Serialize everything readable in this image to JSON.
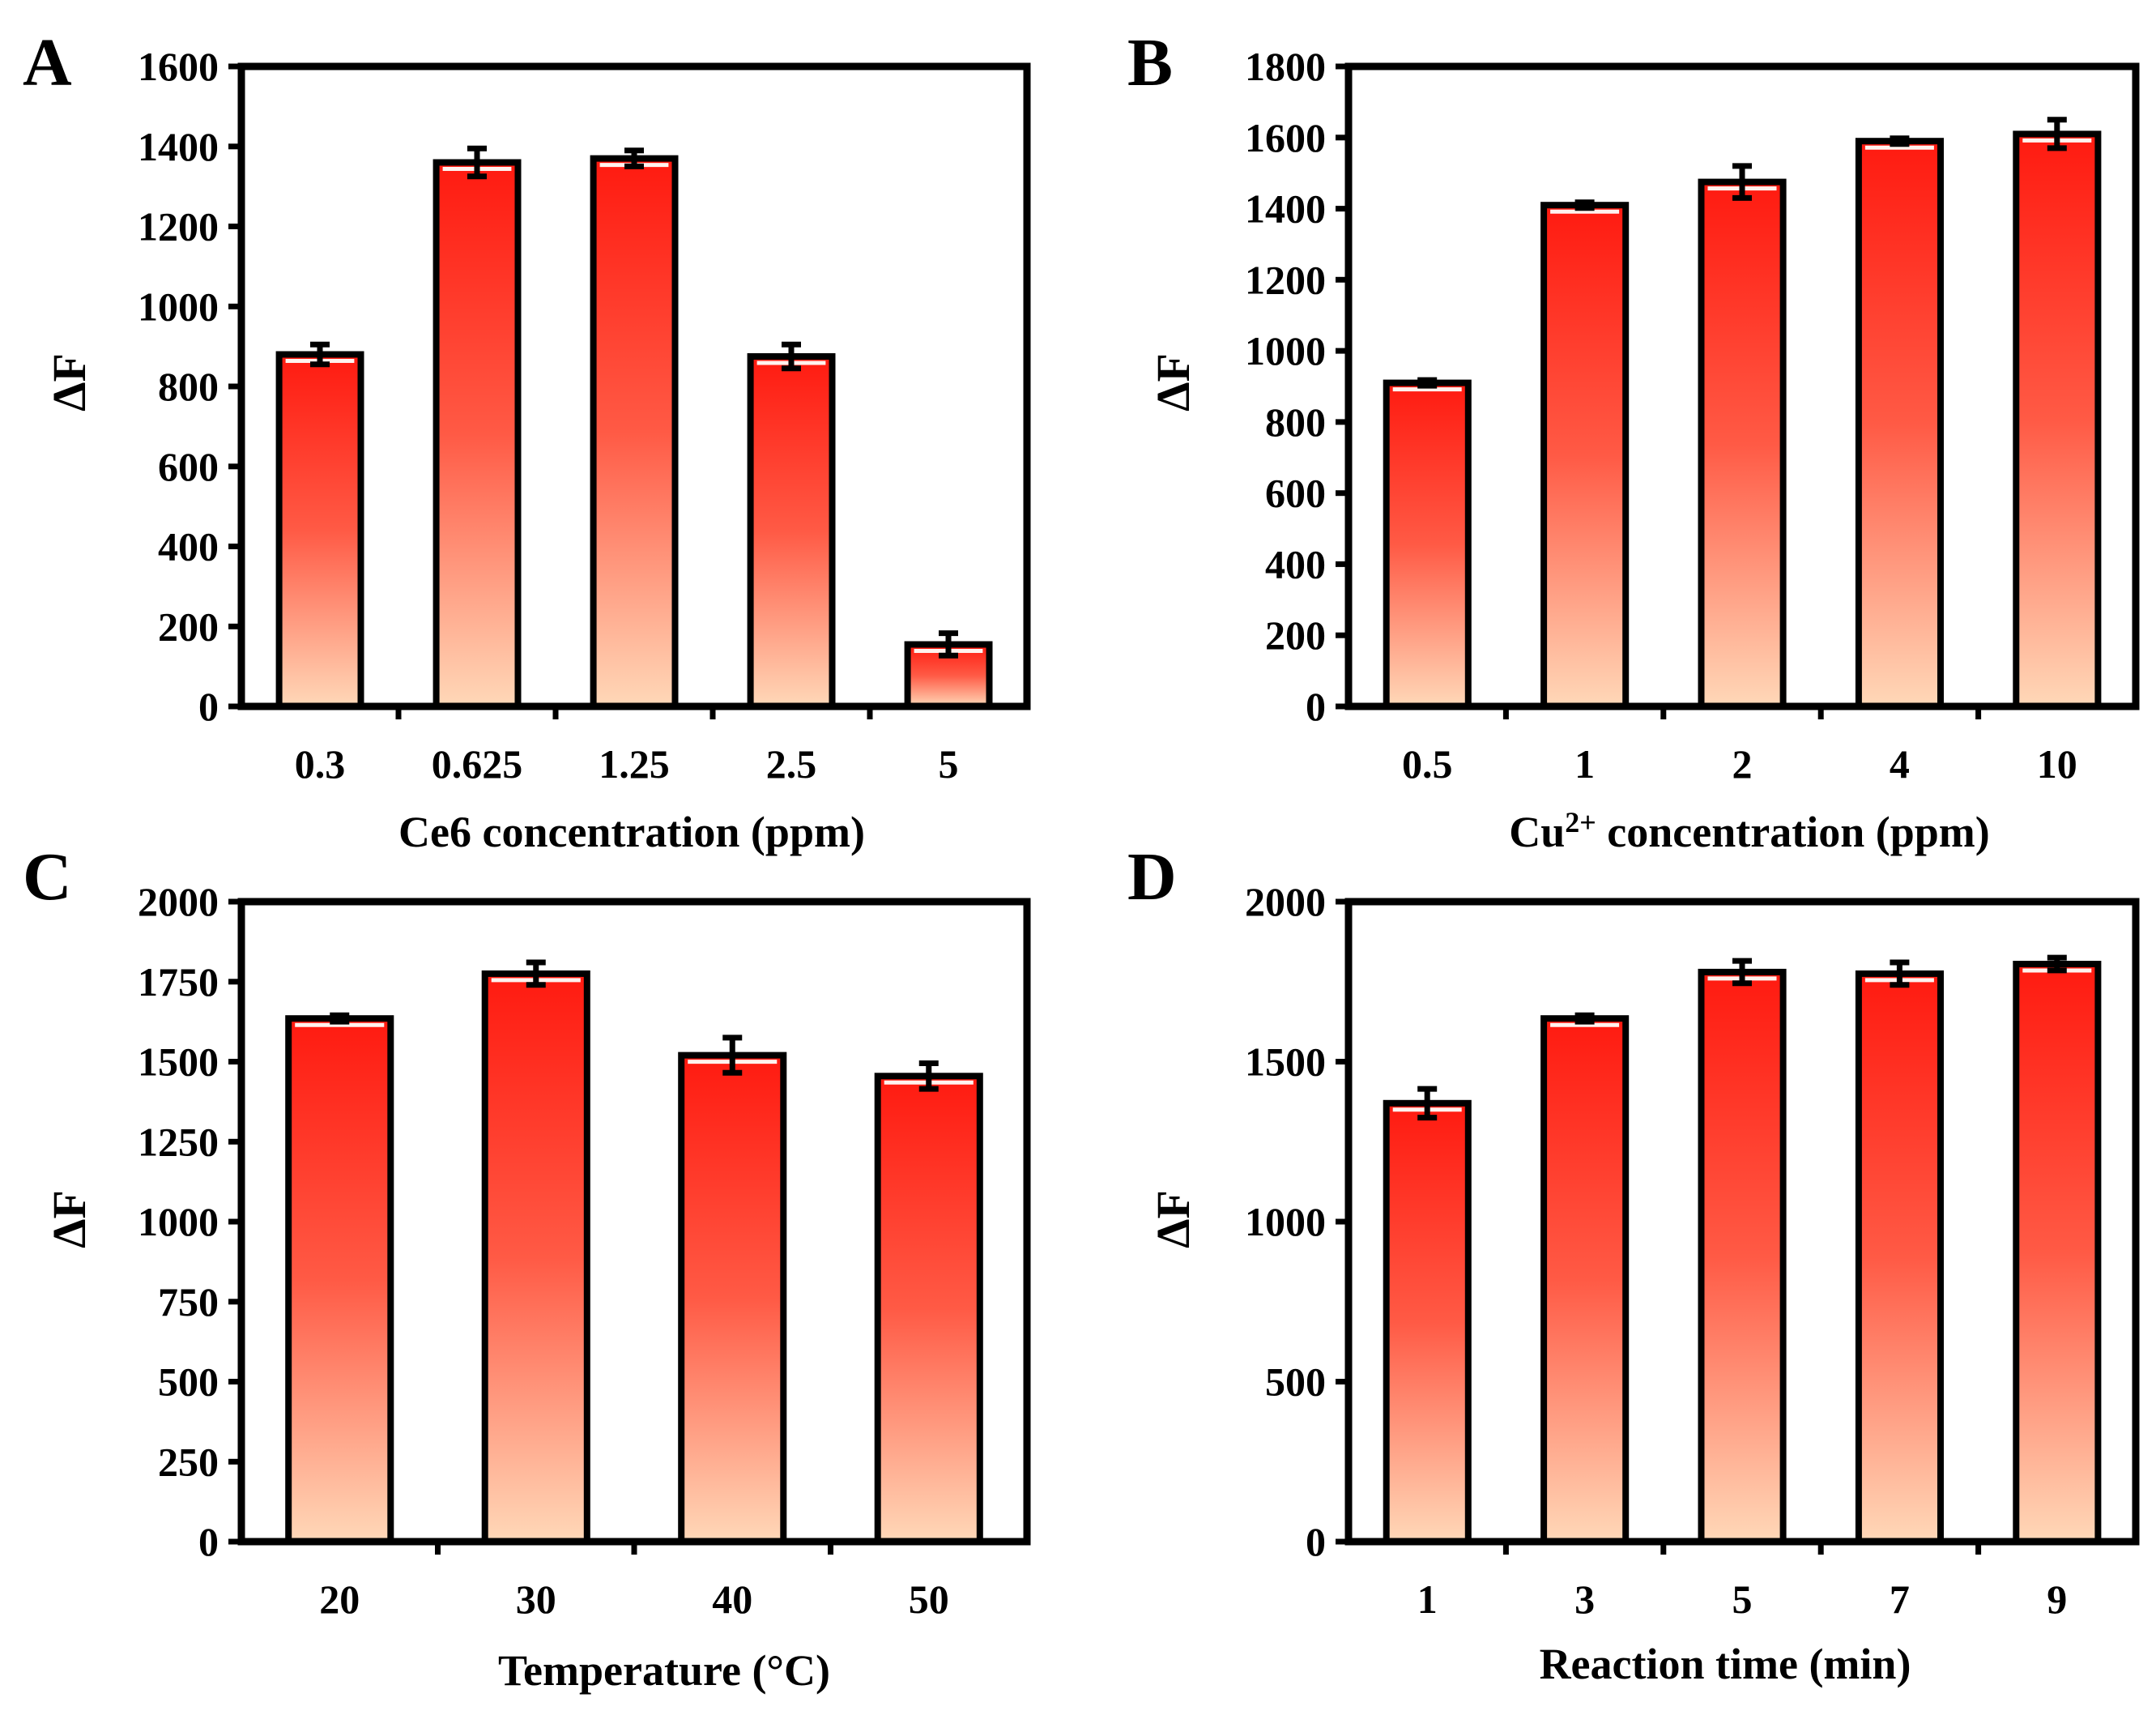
{
  "chart_data": [
    {
      "type": "bar",
      "panel": "A",
      "categories": [
        "0.3",
        "0.625",
        "1.25",
        "2.5",
        "5"
      ],
      "values": [
        880,
        1360,
        1370,
        875,
        155
      ],
      "errors": [
        25,
        35,
        20,
        30,
        28
      ],
      "xlabel": "Ce6 concentration (ppm)",
      "xlabel_sup": "",
      "xlabel_rest": "",
      "ylabel": "ΔF",
      "ylim": [
        0,
        1600
      ],
      "yticks": [
        0,
        200,
        400,
        600,
        800,
        1000,
        1200,
        1400,
        1600
      ],
      "grid": false,
      "legend": "none"
    },
    {
      "type": "bar",
      "panel": "B",
      "categories": [
        "0.5",
        "1",
        "2",
        "4",
        "10"
      ],
      "values": [
        910,
        1410,
        1475,
        1590,
        1610
      ],
      "errors": [
        8,
        8,
        45,
        8,
        40
      ],
      "xlabel": "Cu",
      "xlabel_sup": "2+",
      "xlabel_rest": " concentration (ppm)",
      "ylabel": "ΔF",
      "ylim": [
        0,
        1800
      ],
      "yticks": [
        0,
        200,
        400,
        600,
        800,
        1000,
        1200,
        1400,
        1600,
        1800
      ],
      "grid": false,
      "legend": "none"
    },
    {
      "type": "bar",
      "panel": "C",
      "categories": [
        "20",
        "30",
        "40",
        "50"
      ],
      "values": [
        1635,
        1775,
        1520,
        1455
      ],
      "errors": [
        10,
        35,
        55,
        40
      ],
      "xlabel": "Temperature (°C)",
      "xlabel_sup": "",
      "xlabel_rest": "",
      "ylabel": "ΔF",
      "ylim": [
        0,
        2000
      ],
      "yticks": [
        0,
        250,
        500,
        750,
        1000,
        1250,
        1500,
        1750,
        2000
      ],
      "grid": false,
      "legend": "none"
    },
    {
      "type": "bar",
      "panel": "D",
      "categories": [
        "1",
        "3",
        "5",
        "7",
        "9"
      ],
      "values": [
        1370,
        1635,
        1780,
        1775,
        1805
      ],
      "errors": [
        45,
        10,
        35,
        35,
        20
      ],
      "xlabel": "Reaction time (min)",
      "xlabel_sup": "",
      "xlabel_rest": "",
      "ylabel": "ΔF",
      "ylim": [
        0,
        2000
      ],
      "yticks": [
        0,
        500,
        1000,
        1500,
        2000
      ],
      "grid": false,
      "legend": "none"
    }
  ],
  "colors": {
    "bar_top": "#ff1a10",
    "bar_bottom": "#ffd8b8",
    "outline": "#000000",
    "error_bar": "#000000"
  }
}
